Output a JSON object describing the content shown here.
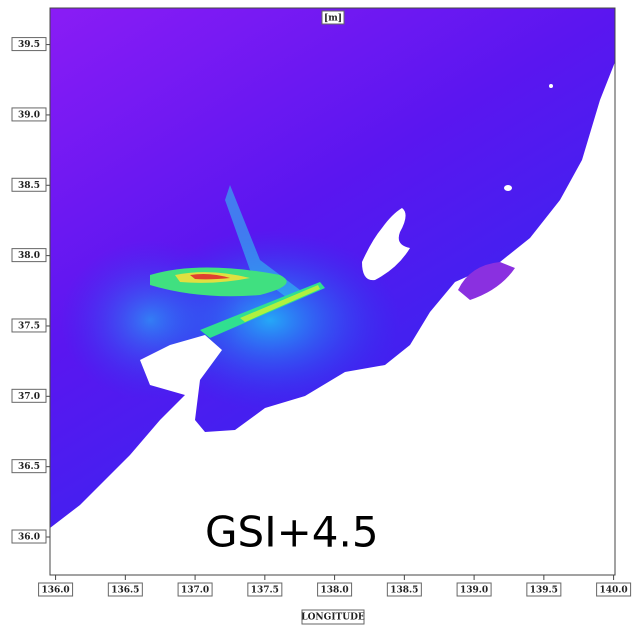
{
  "map": {
    "unit_label": "[m]",
    "annotation": "GSI+4.5",
    "x_axis_label": "LONGITUDE",
    "xlim": [
      135.96,
      140.01
    ],
    "ylim": [
      35.73,
      39.76
    ],
    "xticks": [
      {
        "value": 136,
        "label": "136.0"
      },
      {
        "value": 136.5,
        "label": "136.5"
      },
      {
        "value": 137,
        "label": "137.0"
      },
      {
        "value": 137.5,
        "label": "137.5"
      },
      {
        "value": 138,
        "label": "138.0"
      },
      {
        "value": 138.5,
        "label": "138.5"
      },
      {
        "value": 139,
        "label": "139.0"
      },
      {
        "value": 139.5,
        "label": "139.5"
      },
      {
        "value": 140,
        "label": "140.0"
      }
    ],
    "yticks": [
      {
        "value": 36,
        "label": "36.0"
      },
      {
        "value": 36.5,
        "label": "36.5"
      },
      {
        "value": 37,
        "label": "37.0"
      },
      {
        "value": 37.5,
        "label": "37.5"
      },
      {
        "value": 38,
        "label": "38.0"
      },
      {
        "value": 38.5,
        "label": "38.5"
      },
      {
        "value": 39,
        "label": "39.0"
      },
      {
        "value": 39.5,
        "label": "39.5"
      }
    ]
  }
}
